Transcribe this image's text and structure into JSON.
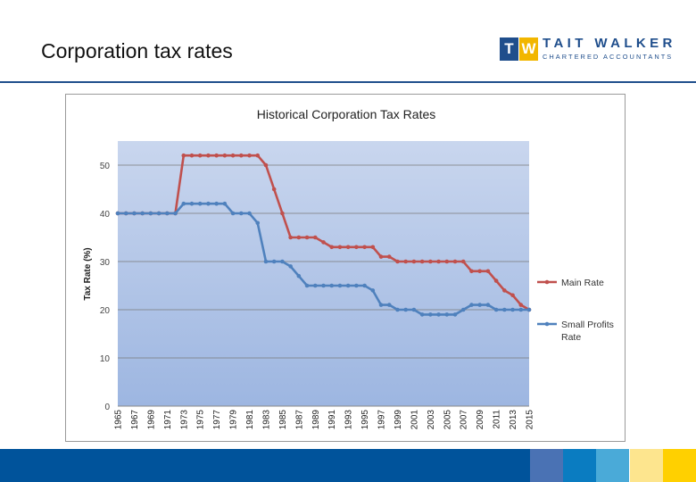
{
  "slide": {
    "title": "Corporation tax rates"
  },
  "logo": {
    "mark_left": "T",
    "mark_right": "W",
    "name": "TAIT WALKER",
    "subtitle": "CHARTERED ACCOUNTANTS",
    "colors": {
      "primary": "#1f4e8c",
      "accent": "#f2b600"
    }
  },
  "footer": {
    "bar_color": "#00539b",
    "blocks": [
      "#4a72b4",
      "#0a7cc1",
      "#4aaad8",
      "#fde58e",
      "#ffd000"
    ]
  },
  "chart_data": {
    "type": "line",
    "title": "Historical Corporation Tax Rates",
    "xlabel": "",
    "ylabel": "Tax Rate (%)",
    "ylim": [
      0,
      55
    ],
    "yticks": [
      0,
      10,
      20,
      30,
      40,
      50
    ],
    "grid": true,
    "legend_position": "right",
    "x": [
      1965,
      1966,
      1967,
      1968,
      1969,
      1970,
      1971,
      1972,
      1973,
      1974,
      1975,
      1976,
      1977,
      1978,
      1979,
      1980,
      1981,
      1982,
      1983,
      1984,
      1985,
      1986,
      1987,
      1988,
      1989,
      1990,
      1991,
      1992,
      1993,
      1994,
      1995,
      1996,
      1997,
      1998,
      1999,
      2000,
      2001,
      2002,
      2003,
      2004,
      2005,
      2006,
      2007,
      2008,
      2009,
      2010,
      2011,
      2012,
      2013,
      2014,
      2015
    ],
    "xtick_labels": [
      "1965",
      "1967",
      "1969",
      "1971",
      "1973",
      "1975",
      "1977",
      "1979",
      "1981",
      "1983",
      "1985",
      "1987",
      "1989",
      "1991",
      "1993",
      "1995",
      "1997",
      "1999",
      "2001",
      "2003",
      "2005",
      "2007",
      "2009",
      "2011",
      "2013",
      "2015"
    ],
    "series": [
      {
        "name": "Main Rate",
        "color": "#c0504d",
        "values": [
          40,
          40,
          40,
          40,
          40,
          40,
          40,
          40,
          52,
          52,
          52,
          52,
          52,
          52,
          52,
          52,
          52,
          52,
          50,
          45,
          40,
          35,
          35,
          35,
          35,
          34,
          33,
          33,
          33,
          33,
          33,
          33,
          31,
          31,
          30,
          30,
          30,
          30,
          30,
          30,
          30,
          30,
          30,
          28,
          28,
          28,
          26,
          24,
          23,
          21,
          20
        ]
      },
      {
        "name": "Small Profits Rate",
        "color": "#4f81bd",
        "values": [
          40,
          40,
          40,
          40,
          40,
          40,
          40,
          40,
          42,
          42,
          42,
          42,
          42,
          42,
          40,
          40,
          40,
          38,
          30,
          30,
          30,
          29,
          27,
          25,
          25,
          25,
          25,
          25,
          25,
          25,
          25,
          24,
          21,
          21,
          20,
          20,
          20,
          19,
          19,
          19,
          19,
          19,
          20,
          21,
          21,
          21,
          20,
          20,
          20,
          20,
          20
        ]
      }
    ]
  }
}
